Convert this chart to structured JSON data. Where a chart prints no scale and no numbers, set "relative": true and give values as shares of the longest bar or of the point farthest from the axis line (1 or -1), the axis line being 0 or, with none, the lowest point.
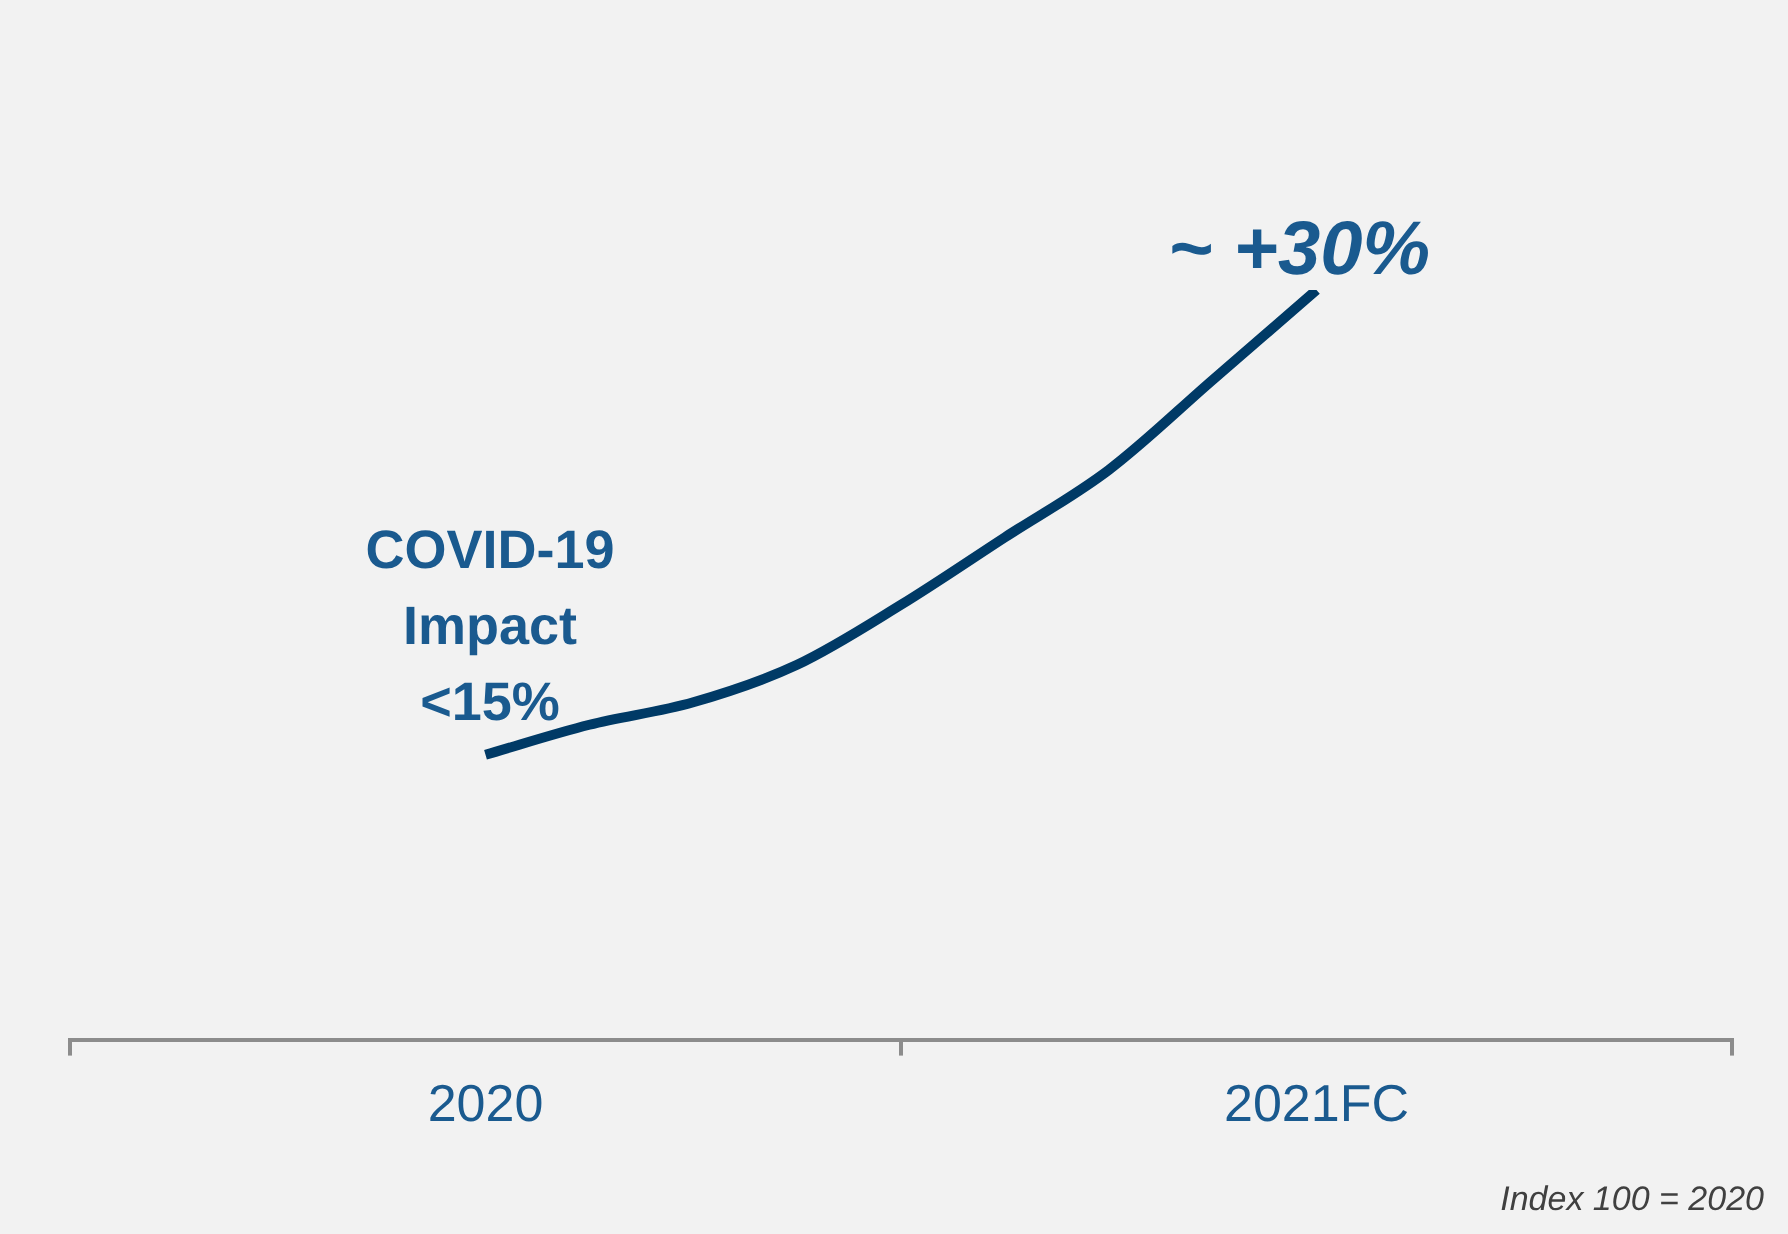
{
  "chart_data": {
    "type": "line",
    "relative": true,
    "categories": [
      null,
      null,
      null,
      null,
      "2020",
      null,
      null,
      null,
      null,
      null,
      null,
      null,
      "2021FC",
      null,
      null,
      null,
      null
    ],
    "series": [
      {
        "color": "#003a66",
        "values": [
          null,
          null,
          null,
          null,
          0.38,
          0.42,
          0.45,
          0.5,
          0.58,
          0.67,
          0.76,
          0.88,
          1.0,
          null,
          null,
          null,
          null
        ]
      }
    ],
    "annotations": [
      "COVID-19\nImpact\n<15%",
      "~ +30%",
      "Index 100 = 2020"
    ]
  }
}
